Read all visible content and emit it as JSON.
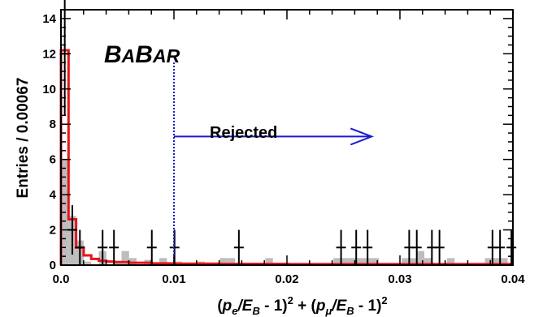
{
  "chart_data": {
    "type": "bar",
    "xlabel": "(p_e /E_B - 1)^2 + (p_μ /E_B - 1)^2",
    "xlabel_parts": {
      "p": "p",
      "e": "e",
      "slashE": "/E",
      "B": "B",
      "minus1": " - 1)",
      "two": "2",
      "plus": " + (",
      "mu": "μ",
      "open": "("
    },
    "ylabel": "Entries / 0.00067",
    "xlim": [
      0.0,
      0.04
    ],
    "ylim": [
      0,
      14.5
    ],
    "x_ticks": [
      0.0,
      0.01,
      0.02,
      0.03,
      0.04
    ],
    "x_tick_labels": [
      "0.0",
      "0.01",
      "0.02",
      "0.03",
      "0.04"
    ],
    "y_ticks": [
      0,
      2,
      4,
      6,
      8,
      10,
      12,
      14
    ],
    "y_tick_labels": [
      "0",
      "2",
      "4",
      "6",
      "8",
      "10",
      "12",
      "14"
    ],
    "bin_width": 0.00067,
    "background_histogram": {
      "color": "#bdbdbd",
      "bins": [
        {
          "x": 0.0,
          "value": 6.0
        },
        {
          "x": 0.00067,
          "value": 2.8
        },
        {
          "x": 0.00134,
          "value": 1.4
        },
        {
          "x": 0.00201,
          "value": 0.2
        },
        {
          "x": 0.00335,
          "value": 0.8
        },
        {
          "x": 0.00469,
          "value": 0.2
        },
        {
          "x": 0.00536,
          "value": 0.8
        },
        {
          "x": 0.00603,
          "value": 0.4
        },
        {
          "x": 0.00737,
          "value": 0.3
        },
        {
          "x": 0.00871,
          "value": 0.4
        },
        {
          "x": 0.01005,
          "value": 0.2
        },
        {
          "x": 0.01206,
          "value": 0.2
        },
        {
          "x": 0.01407,
          "value": 0.4
        },
        {
          "x": 0.01474,
          "value": 0.4
        },
        {
          "x": 0.01809,
          "value": 0.4
        },
        {
          "x": 0.02412,
          "value": 0.4
        },
        {
          "x": 0.02479,
          "value": 0.4
        },
        {
          "x": 0.02546,
          "value": 0.4
        },
        {
          "x": 0.02613,
          "value": 0.4
        },
        {
          "x": 0.0268,
          "value": 0.4
        },
        {
          "x": 0.02747,
          "value": 0.4
        },
        {
          "x": 0.03015,
          "value": 0.4
        },
        {
          "x": 0.03082,
          "value": 0.4
        },
        {
          "x": 0.03149,
          "value": 0.8
        },
        {
          "x": 0.03216,
          "value": 0.4
        },
        {
          "x": 0.03417,
          "value": 0.4
        },
        {
          "x": 0.03752,
          "value": 0.4
        },
        {
          "x": 0.03819,
          "value": 0.4
        },
        {
          "x": 0.03886,
          "value": 0.4
        }
      ]
    },
    "fit_curve": {
      "color": "#e8141c",
      "steps": [
        {
          "x": 0.0,
          "value": 12.2
        },
        {
          "x": 0.00067,
          "value": 2.6
        },
        {
          "x": 0.00134,
          "value": 1.0
        },
        {
          "x": 0.00201,
          "value": 0.55
        },
        {
          "x": 0.00268,
          "value": 0.35
        },
        {
          "x": 0.00335,
          "value": 0.25
        },
        {
          "x": 0.00402,
          "value": 0.2
        },
        {
          "x": 0.00469,
          "value": 0.17
        },
        {
          "x": 0.00603,
          "value": 0.13
        },
        {
          "x": 0.00804,
          "value": 0.1
        },
        {
          "x": 0.01005,
          "value": 0.08
        },
        {
          "x": 0.01407,
          "value": 0.07
        },
        {
          "x": 0.0201,
          "value": 0.06
        },
        {
          "x": 0.03015,
          "value": 0.06
        },
        {
          "x": 0.04,
          "value": 0.06
        }
      ]
    },
    "data_points": [
      {
        "x": 0.000335,
        "y": 12,
        "err": 3.5
      },
      {
        "x": 0.001005,
        "y": 2,
        "err": 1.4
      },
      {
        "x": 0.001675,
        "y": 1,
        "err": 1.0
      },
      {
        "x": 0.003685,
        "y": 1,
        "err": 1.0
      },
      {
        "x": 0.00469,
        "y": 1,
        "err": 1.0
      },
      {
        "x": 0.00804,
        "y": 1,
        "err": 1.0
      },
      {
        "x": 0.01005,
        "y": 1,
        "err": 1.0
      },
      {
        "x": 0.015745,
        "y": 1,
        "err": 1.0
      },
      {
        "x": 0.02479,
        "y": 1,
        "err": 1.0
      },
      {
        "x": 0.02613,
        "y": 1,
        "err": 1.0
      },
      {
        "x": 0.027135,
        "y": 1,
        "err": 1.0
      },
      {
        "x": 0.03082,
        "y": 1,
        "err": 1.0
      },
      {
        "x": 0.03149,
        "y": 1,
        "err": 1.0
      },
      {
        "x": 0.03283,
        "y": 1,
        "err": 1.0
      },
      {
        "x": 0.0335,
        "y": 1,
        "err": 1.0
      },
      {
        "x": 0.03819,
        "y": 1,
        "err": 1.0
      },
      {
        "x": 0.03886,
        "y": 1,
        "err": 1.0
      },
      {
        "x": 0.039865,
        "y": 1,
        "err": 1.0
      }
    ],
    "cut_line": {
      "x": 0.01,
      "y_top": 11.5,
      "color": "#1a1ad0"
    },
    "annotation": {
      "text": "Rejected",
      "arrow_from_x": 0.01,
      "arrow_to_x": 0.0275,
      "arrow_y": 7.3,
      "color": "#1a1ad0"
    },
    "logo": {
      "parts": [
        "B",
        "A",
        "B",
        "AR"
      ]
    },
    "grid": false,
    "legend": "none"
  }
}
